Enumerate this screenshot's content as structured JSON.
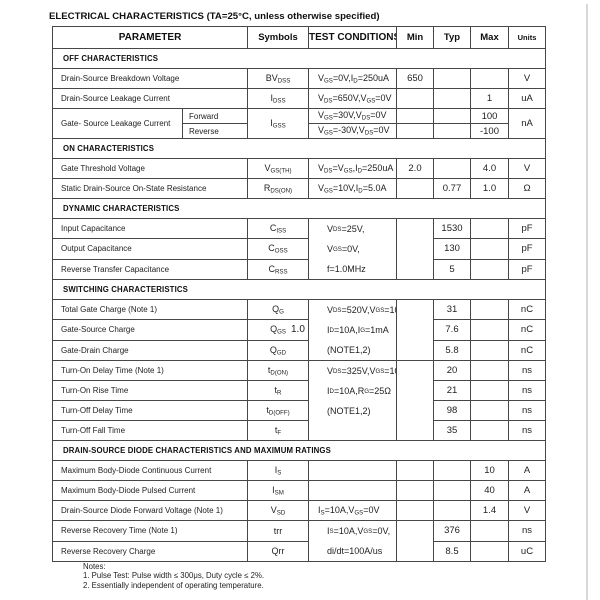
{
  "title": "ELECTRICAL CHARACTERISTICS (TA=25°C, unless otherwise specified)",
  "artifact": "1.0",
  "notes": {
    "label": "Notes:",
    "items": [
      "1. Pulse Test: Pulse width ≤ 300μs, Duty cycle ≤ 2%.",
      "2. Essentially independent of operating temperature."
    ]
  },
  "table": {
    "header": [
      "PARAMETER",
      "Symbols",
      "TEST CONDITIONS",
      "Min",
      "Typ",
      "Max",
      "Units"
    ],
    "rows": [
      {
        "section": "OFF CHARACTERISTICS"
      },
      {
        "cells": [
          {
            "col": "param",
            "cs": 2,
            "v": "Drain-Source Breakdown Voltage"
          },
          {
            "col": "sym",
            "v": [
              "BV",
              {
                "sub": "DSS"
              }
            ]
          },
          {
            "col": "cond",
            "v": [
              "V",
              {
                "sub": "GS"
              },
              "=0V,I",
              {
                "sub": "D"
              },
              "=250uA"
            ]
          },
          {
            "col": "min",
            "v": "650"
          },
          {
            "col": "typ",
            "v": ""
          },
          {
            "col": "max",
            "v": ""
          },
          {
            "col": "units",
            "v": "V"
          }
        ]
      },
      {
        "cells": [
          {
            "col": "param",
            "cs": 2,
            "v": "Drain-Source Leakage Current"
          },
          {
            "col": "sym",
            "v": [
              "I",
              {
                "sub": "DSS"
              }
            ]
          },
          {
            "col": "cond",
            "v": [
              "V",
              {
                "sub": "DS"
              },
              "=650V,V",
              {
                "sub": "GS"
              },
              "=0V"
            ]
          },
          {
            "col": "min",
            "v": ""
          },
          {
            "col": "typ",
            "v": ""
          },
          {
            "col": "max",
            "v": "1"
          },
          {
            "col": "units",
            "v": "uA"
          }
        ]
      },
      {
        "h": 15,
        "cells": [
          {
            "col": "param",
            "rs": 2,
            "v": "Gate- Source Leakage Current"
          },
          {
            "col": "subp",
            "v": "Forward"
          },
          {
            "col": "sym",
            "rs": 2,
            "v": [
              "I",
              {
                "sub": "GSS"
              }
            ]
          },
          {
            "col": "cond",
            "v": [
              "V",
              {
                "sub": "GS"
              },
              "=30V,V",
              {
                "sub": "DS"
              },
              "=0V"
            ]
          },
          {
            "col": "min",
            "v": ""
          },
          {
            "col": "typ",
            "v": ""
          },
          {
            "col": "max",
            "v": "100"
          },
          {
            "col": "units",
            "rs": 2,
            "v": "nA"
          }
        ]
      },
      {
        "h": 15,
        "cells": [
          {
            "col": "subp",
            "v": "Reverse"
          },
          {
            "col": "cond",
            "v": [
              "V",
              {
                "sub": "GS"
              },
              "=-30V,V",
              {
                "sub": "DS"
              },
              "=0V"
            ]
          },
          {
            "col": "min",
            "v": ""
          },
          {
            "col": "typ",
            "v": ""
          },
          {
            "col": "max",
            "v": "-100"
          }
        ]
      },
      {
        "section": "ON CHARACTERISTICS"
      },
      {
        "cells": [
          {
            "col": "param",
            "cs": 2,
            "v": "Gate Threshold Voltage"
          },
          {
            "col": "sym",
            "v": [
              "V",
              {
                "sub": "GS(TH)"
              }
            ]
          },
          {
            "col": "cond",
            "v": [
              "V",
              {
                "sub": "DS"
              },
              "=V",
              {
                "sub": "GS"
              },
              ",I",
              {
                "sub": "D"
              },
              "=250uA"
            ]
          },
          {
            "col": "min",
            "v": "2.0"
          },
          {
            "col": "typ",
            "v": ""
          },
          {
            "col": "max",
            "v": "4.0"
          },
          {
            "col": "units",
            "v": "V"
          }
        ]
      },
      {
        "cells": [
          {
            "col": "param",
            "cs": 2,
            "v": "Static Drain-Source On-State Resistance"
          },
          {
            "col": "sym",
            "v": [
              "R",
              {
                "sub": "DS(ON)"
              }
            ]
          },
          {
            "col": "cond",
            "v": [
              "V",
              {
                "sub": "GS"
              },
              "=10V,I",
              {
                "sub": "D"
              },
              "=5.0A"
            ]
          },
          {
            "col": "min",
            "v": ""
          },
          {
            "col": "typ",
            "v": "0.77"
          },
          {
            "col": "max",
            "v": "1.0"
          },
          {
            "col": "units",
            "v": "Ω"
          }
        ]
      },
      {
        "section": "DYNAMIC CHARACTERISTICS"
      },
      {
        "cells": [
          {
            "col": "param",
            "cs": 2,
            "v": "Input Capacitance"
          },
          {
            "col": "sym",
            "v": [
              "C",
              {
                "sub": "ISS"
              }
            ]
          },
          {
            "col": "cond",
            "rs": 3,
            "v": {
              "lines": [
                [
                  "V",
                  {
                    "sub": "DS"
                  },
                  "=25V,"
                ],
                [
                  "V",
                  {
                    "sub": "GS"
                  },
                  "=0V,"
                ],
                [
                  "f=1.0MHz"
                ]
              ]
            }
          },
          {
            "col": "min",
            "rs": 3,
            "v": ""
          },
          {
            "col": "typ",
            "v": "1530"
          },
          {
            "col": "max",
            "v": ""
          },
          {
            "col": "units",
            "v": "pF"
          }
        ]
      },
      {
        "cells": [
          {
            "col": "param",
            "cs": 2,
            "v": "Output Capacitance"
          },
          {
            "col": "sym",
            "v": [
              "C",
              {
                "sub": "OSS"
              }
            ]
          },
          {
            "col": "typ",
            "v": "130"
          },
          {
            "col": "max",
            "v": ""
          },
          {
            "col": "units",
            "v": "pF"
          }
        ]
      },
      {
        "cells": [
          {
            "col": "param",
            "cs": 2,
            "v": "Reverse Transfer Capacitance"
          },
          {
            "col": "sym",
            "v": [
              "C",
              {
                "sub": "RSS"
              }
            ]
          },
          {
            "col": "typ",
            "v": "5"
          },
          {
            "col": "max",
            "v": ""
          },
          {
            "col": "units",
            "v": "pF"
          }
        ]
      },
      {
        "section": "SWITCHING CHARACTERISTICS"
      },
      {
        "cells": [
          {
            "col": "param",
            "cs": 2,
            "v": "Total Gate Charge (Note 1)"
          },
          {
            "col": "sym",
            "v": [
              "Q",
              {
                "sub": "G"
              }
            ]
          },
          {
            "col": "cond",
            "rs": 3,
            "v": {
              "lines": [
                [
                  "V",
                  {
                    "sub": "DS"
                  },
                  "=520V,V",
                  {
                    "sub": "GS"
                  },
                  "=10V,"
                ],
                [
                  "I",
                  {
                    "sub": "D"
                  },
                  "=10A,I",
                  {
                    "sub": "G"
                  },
                  "=1mA"
                ],
                [
                  "(NOTE1,2)"
                ]
              ]
            }
          },
          {
            "col": "min",
            "rs": 3,
            "v": ""
          },
          {
            "col": "typ",
            "v": "31"
          },
          {
            "col": "max",
            "v": ""
          },
          {
            "col": "units",
            "v": "nC"
          }
        ]
      },
      {
        "cells": [
          {
            "col": "param",
            "cs": 2,
            "v": "Gate-Source Charge"
          },
          {
            "col": "sym",
            "v": [
              "Q",
              {
                "sub": "GS"
              }
            ]
          },
          {
            "col": "typ",
            "v": "7.6"
          },
          {
            "col": "max",
            "v": ""
          },
          {
            "col": "units",
            "v": "nC"
          }
        ]
      },
      {
        "cells": [
          {
            "col": "param",
            "cs": 2,
            "v": "Gate-Drain Charge"
          },
          {
            "col": "sym",
            "v": [
              "Q",
              {
                "sub": "GD"
              }
            ]
          },
          {
            "col": "typ",
            "v": "5.8"
          },
          {
            "col": "max",
            "v": ""
          },
          {
            "col": "units",
            "v": "nC"
          }
        ]
      },
      {
        "cells": [
          {
            "col": "param",
            "cs": 2,
            "v": "Turn-On Delay Time (Note 1)"
          },
          {
            "col": "sym",
            "v": [
              "t",
              {
                "sub": "D(ON)"
              }
            ]
          },
          {
            "col": "cond",
            "rs": 4,
            "v": {
              "lines": [
                [
                  "V",
                  {
                    "sub": "DS"
                  },
                  "=325V,V",
                  {
                    "sub": "GS"
                  },
                  "=10V,"
                ],
                [
                  "I",
                  {
                    "sub": "D"
                  },
                  "=10A,R",
                  {
                    "sub": "G"
                  },
                  "=25Ω"
                ],
                [
                  "(NOTE1,2)"
                ]
              ]
            }
          },
          {
            "col": "min",
            "rs": 4,
            "v": ""
          },
          {
            "col": "typ",
            "v": "20"
          },
          {
            "col": "max",
            "v": ""
          },
          {
            "col": "units",
            "v": "ns"
          }
        ]
      },
      {
        "cells": [
          {
            "col": "param",
            "cs": 2,
            "v": "Turn-On Rise Time"
          },
          {
            "col": "sym",
            "v": [
              "t",
              {
                "sub": "R"
              }
            ]
          },
          {
            "col": "typ",
            "v": "21"
          },
          {
            "col": "max",
            "v": ""
          },
          {
            "col": "units",
            "v": "ns"
          }
        ]
      },
      {
        "cells": [
          {
            "col": "param",
            "cs": 2,
            "v": "Turn-Off Delay Time"
          },
          {
            "col": "sym",
            "v": [
              "t",
              {
                "sub": "D(OFF)"
              }
            ]
          },
          {
            "col": "typ",
            "v": "98"
          },
          {
            "col": "max",
            "v": ""
          },
          {
            "col": "units",
            "v": "ns"
          }
        ]
      },
      {
        "cells": [
          {
            "col": "param",
            "cs": 2,
            "v": "Turn-Off Fall Time"
          },
          {
            "col": "sym",
            "v": [
              "t",
              {
                "sub": "F"
              }
            ]
          },
          {
            "col": "typ",
            "v": "35"
          },
          {
            "col": "max",
            "v": ""
          },
          {
            "col": "units",
            "v": "ns"
          }
        ]
      },
      {
        "section": "DRAIN-SOURCE DIODE CHARACTERISTICS AND MAXIMUM RATINGS"
      },
      {
        "cells": [
          {
            "col": "param",
            "cs": 2,
            "v": "Maximum Body-Diode Continuous Current"
          },
          {
            "col": "sym",
            "v": [
              "I",
              {
                "sub": "S"
              }
            ]
          },
          {
            "col": "cond",
            "v": ""
          },
          {
            "col": "min",
            "v": ""
          },
          {
            "col": "typ",
            "v": ""
          },
          {
            "col": "max",
            "v": "10"
          },
          {
            "col": "units",
            "v": "A"
          }
        ]
      },
      {
        "cells": [
          {
            "col": "param",
            "cs": 2,
            "v": "Maximum Body-Diode Pulsed Current"
          },
          {
            "col": "sym",
            "v": [
              "I",
              {
                "sub": "SM"
              }
            ]
          },
          {
            "col": "cond",
            "v": ""
          },
          {
            "col": "min",
            "v": ""
          },
          {
            "col": "typ",
            "v": ""
          },
          {
            "col": "max",
            "v": "40"
          },
          {
            "col": "units",
            "v": "A"
          }
        ]
      },
      {
        "cells": [
          {
            "col": "param",
            "cs": 2,
            "v": "Drain-Source Diode Forward Voltage (Note 1)"
          },
          {
            "col": "sym",
            "v": [
              "V",
              {
                "sub": "SD"
              }
            ]
          },
          {
            "col": "cond",
            "v": [
              "I",
              {
                "sub": "S"
              },
              "=10A,V",
              {
                "sub": "GS"
              },
              "=0V"
            ]
          },
          {
            "col": "min",
            "v": ""
          },
          {
            "col": "typ",
            "v": ""
          },
          {
            "col": "max",
            "v": "1.4"
          },
          {
            "col": "units",
            "v": "V"
          }
        ]
      },
      {
        "cells": [
          {
            "col": "param",
            "cs": 2,
            "v": "Reverse Recovery Time (Note 1)"
          },
          {
            "col": "sym",
            "v": "trr"
          },
          {
            "col": "cond",
            "rs": 2,
            "v": {
              "lines": [
                [
                  "I",
                  {
                    "sub": "S"
                  },
                  "=10A,V",
                  {
                    "sub": "GS"
                  },
                  "=0V,"
                ],
                [
                  "di/dt=100A/us"
                ]
              ]
            }
          },
          {
            "col": "min",
            "rs": 2,
            "v": ""
          },
          {
            "col": "typ",
            "v": "376"
          },
          {
            "col": "max",
            "v": ""
          },
          {
            "col": "units",
            "v": "ns"
          }
        ]
      },
      {
        "cells": [
          {
            "col": "param",
            "cs": 2,
            "v": "Reverse Recovery Charge"
          },
          {
            "col": "sym",
            "v": "Qrr"
          },
          {
            "col": "typ",
            "v": "8.5"
          },
          {
            "col": "max",
            "v": ""
          },
          {
            "col": "units",
            "v": "uC"
          }
        ]
      }
    ]
  }
}
